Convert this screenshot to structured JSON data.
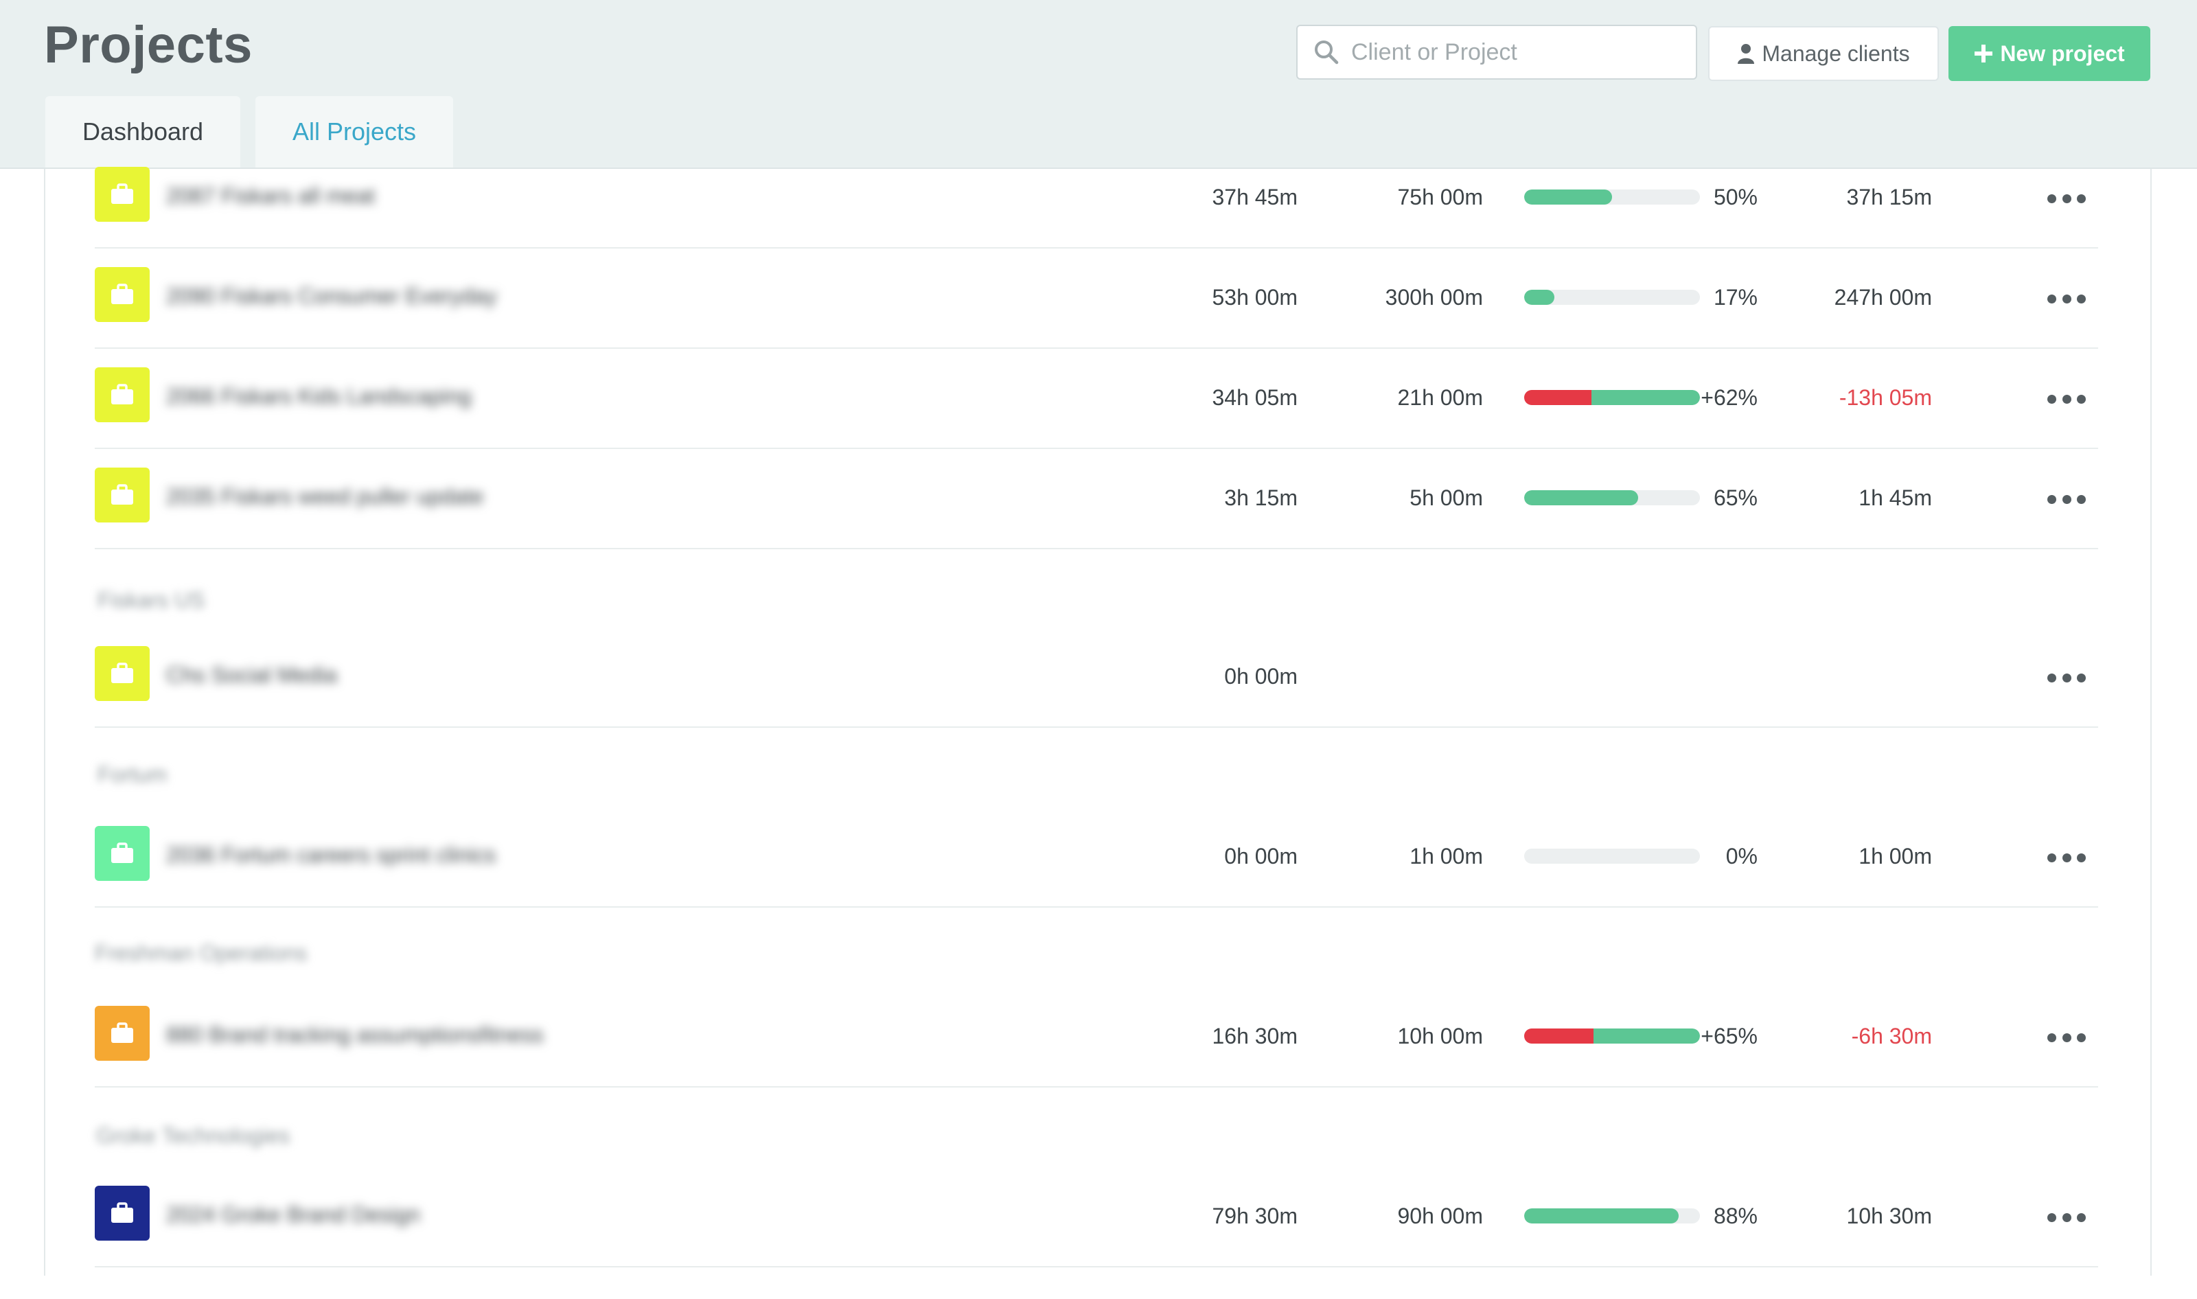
{
  "header": {
    "title": "Projects",
    "search_placeholder": "Client or Project",
    "manage_clients_label": "Manage clients",
    "new_project_label": "New project",
    "tabs": [
      {
        "label": "Dashboard",
        "active": false
      },
      {
        "label": "All Projects",
        "active": true
      }
    ]
  },
  "colors": {
    "accent_green": "#5fcf97",
    "progress_green": "#5cc694",
    "over_budget_red": "#e53945",
    "active_tab_blue": "#3aa7c9"
  },
  "groups": [
    {
      "label": "Fiskars US"
    },
    {
      "label": "Fortum"
    },
    {
      "label": "Freshman Operations"
    },
    {
      "label": "Groke Technologies"
    }
  ],
  "projects": [
    {
      "name": "2087 Fiskars all meat",
      "icon_color": "#e8f535",
      "tracked": "37h 45m",
      "budget": "75h 00m",
      "progress": 0.5,
      "over": 0,
      "percent": "50%",
      "remaining": "37h 15m",
      "over_budget": false
    },
    {
      "name": "2090 Fiskars Consumer Everyday",
      "icon_color": "#e8f535",
      "tracked": "53h 00m",
      "budget": "300h 00m",
      "progress": 0.17,
      "over": 0,
      "percent": "17%",
      "remaining": "247h 00m",
      "over_budget": false
    },
    {
      "name": "2066 Fiskars Kids Landscaping",
      "icon_color": "#e8f535",
      "tracked": "34h 05m",
      "budget": "21h 00m",
      "progress": 1,
      "over": 0.62,
      "percent": "+62%",
      "remaining": "-13h 05m",
      "over_budget": true
    },
    {
      "name": "2035 Fiskars weed puller update",
      "icon_color": "#e8f535",
      "tracked": "3h 15m",
      "budget": "5h 00m",
      "progress": 0.65,
      "over": 0,
      "percent": "65%",
      "remaining": "1h 45m",
      "over_budget": false
    },
    {
      "name": "Chs Social Media",
      "icon_color": "#e8f535",
      "tracked": "0h 00m",
      "budget": "",
      "progress": null,
      "over": 0,
      "percent": "",
      "remaining": "",
      "over_budget": false
    },
    {
      "name": "2036 Fortum careers sprint clinics",
      "icon_color": "#6cf0a2",
      "tracked": "0h 00m",
      "budget": "1h 00m",
      "progress": 0,
      "over": 0,
      "percent": "0%",
      "remaining": "1h 00m",
      "over_budget": false
    },
    {
      "name": "880 Brand tracking assumptionsfitness",
      "icon_color": "#f5a832",
      "tracked": "16h 30m",
      "budget": "10h 00m",
      "progress": 1,
      "over": 0.65,
      "percent": "+65%",
      "remaining": "-6h 30m",
      "over_budget": true
    },
    {
      "name": "2024 Groke Brand Design",
      "icon_color": "#1c2a8e",
      "tracked": "79h 30m",
      "budget": "90h 00m",
      "progress": 0.88,
      "over": 0,
      "percent": "88%",
      "remaining": "10h 30m",
      "over_budget": false
    }
  ]
}
